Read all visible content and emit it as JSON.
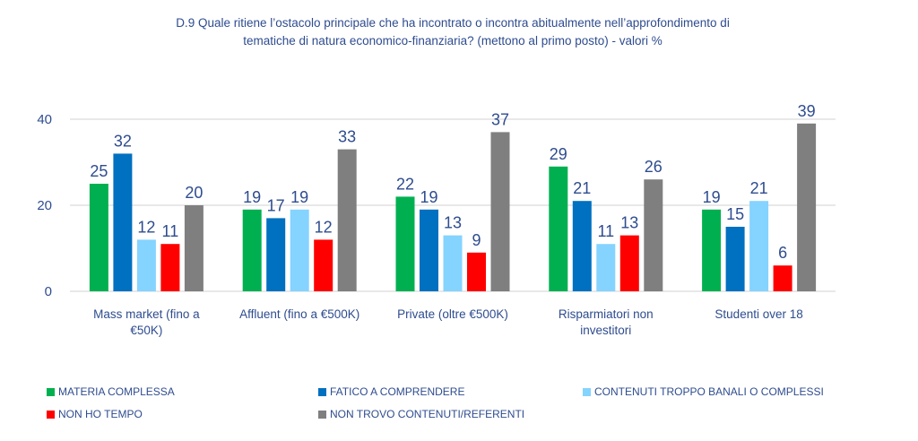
{
  "title_lines": [
    "D.9 Quale ritiene l’ostacolo principale che ha incontrato o incontra abitualmente  nell’approfondimento di",
    "tematiche  di natura economico-finanziaria? (mettono al primo posto) - valori %"
  ],
  "chart_data": {
    "type": "bar",
    "title": "D.9 Quale ritiene l’ostacolo principale che ha incontrato o incontra abitualmente nell’approfondimento di tematiche di natura economico-finanziaria? (mettono al primo posto) - valori %",
    "xlabel": "",
    "ylabel": "",
    "ylim": [
      0,
      40
    ],
    "yticks": [
      0,
      20,
      40
    ],
    "grid": true,
    "legend_position": "bottom",
    "categories": [
      [
        "Mass market (fino a",
        "€50K)"
      ],
      [
        "Affluent (fino a €500K)"
      ],
      [
        "Private (oltre €500K)"
      ],
      [
        "Risparmiatori non",
        "investitori"
      ],
      [
        "Studenti over 18"
      ]
    ],
    "series": [
      {
        "name": "MATERIA COMPLESSA",
        "color": "#00B050",
        "values": [
          25,
          19,
          22,
          29,
          19
        ]
      },
      {
        "name": "FATICO A COMPRENDERE",
        "color": "#0070C0",
        "values": [
          32,
          17,
          19,
          21,
          15
        ]
      },
      {
        "name": "CONTENUTI TROPPO BANALI O COMPLESSI",
        "color": "#85D3FF",
        "values": [
          12,
          19,
          13,
          11,
          21
        ]
      },
      {
        "name": "NON HO TEMPO",
        "color": "#FF0000",
        "values": [
          11,
          12,
          9,
          13,
          6
        ]
      },
      {
        "name": "NON TROVO CONTENUTI/REFERENTI",
        "color": "#7F7F7F",
        "values": [
          20,
          33,
          37,
          26,
          39
        ]
      }
    ]
  }
}
